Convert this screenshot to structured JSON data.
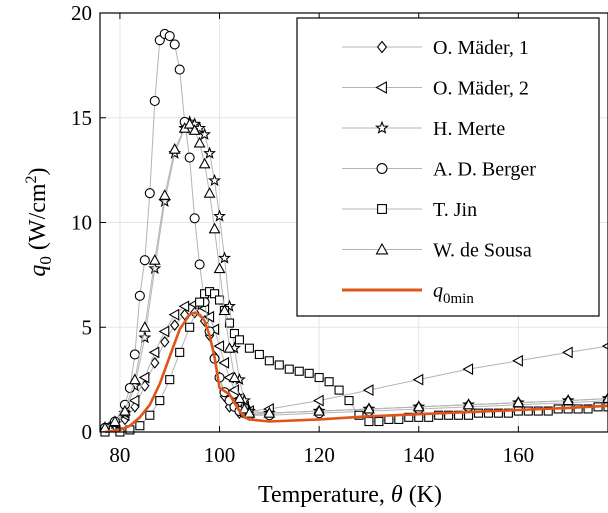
{
  "chart_data": {
    "type": "line",
    "title": "",
    "xlabel": "Temperature, θ (K)",
    "ylabel": "q₀ (W/cm²)",
    "xlim": [
      76,
      178
    ],
    "ylim": [
      0,
      20
    ],
    "xticks": [
      80,
      100,
      120,
      140,
      160
    ],
    "yticks": [
      0,
      5,
      10,
      15,
      20
    ],
    "grid": true,
    "legend_position": "top-right",
    "series": [
      {
        "name": "O. Mäder, 1",
        "marker": "diamond",
        "x": [
          77,
          79,
          81,
          83,
          85,
          87,
          89,
          91,
          93,
          95,
          97,
          98,
          99,
          100,
          101,
          102,
          104,
          106,
          110,
          120,
          130,
          140,
          150,
          160,
          170,
          178
        ],
        "y": [
          0.2,
          0.3,
          0.6,
          1.2,
          2.2,
          3.3,
          4.3,
          5.1,
          5.6,
          5.7,
          5.3,
          4.6,
          3.6,
          2.6,
          1.7,
          1.2,
          0.9,
          0.8,
          0.9,
          1.0,
          1.1,
          1.2,
          1.3,
          1.4,
          1.5,
          1.6
        ]
      },
      {
        "name": "O. Mäder, 2",
        "marker": "triangle-left",
        "x": [
          77,
          79,
          81,
          83,
          85,
          87,
          89,
          91,
          93,
          95,
          97,
          98,
          99,
          100,
          101,
          102,
          103,
          104,
          105,
          106,
          110,
          120,
          130,
          140,
          150,
          160,
          170,
          178
        ],
        "y": [
          0.2,
          0.4,
          0.8,
          1.5,
          2.6,
          3.8,
          4.8,
          5.6,
          6.0,
          6.1,
          5.9,
          5.5,
          4.9,
          4.1,
          3.3,
          2.6,
          2.0,
          1.6,
          1.2,
          1.0,
          1.1,
          1.5,
          2.0,
          2.5,
          3.0,
          3.4,
          3.8,
          4.1
        ]
      },
      {
        "name": "H. Merte",
        "marker": "star",
        "x": [
          77,
          79,
          81,
          83,
          85,
          87,
          89,
          91,
          93,
          94,
          95,
          96,
          97,
          98,
          99,
          100,
          101,
          102,
          103,
          104,
          105,
          106,
          110,
          120,
          130,
          140,
          150,
          160,
          170,
          178
        ],
        "y": [
          0.2,
          0.4,
          0.9,
          2.2,
          4.5,
          7.8,
          11.0,
          13.3,
          14.5,
          14.8,
          14.7,
          14.5,
          14.2,
          13.3,
          12.0,
          10.3,
          8.3,
          6.0,
          4.0,
          2.5,
          1.5,
          1.0,
          0.9,
          1.0,
          1.1,
          1.2,
          1.3,
          1.4,
          1.5,
          1.6
        ]
      },
      {
        "name": "A. D. Berger",
        "marker": "circle",
        "x": [
          77,
          79,
          81,
          82,
          83,
          84,
          85,
          86,
          87,
          88,
          89,
          90,
          91,
          92,
          93,
          94,
          95,
          96,
          97,
          98,
          99,
          100,
          101,
          102,
          103,
          104,
          105,
          106,
          110,
          120,
          130,
          140,
          150,
          160,
          170,
          178
        ],
        "y": [
          0.2,
          0.5,
          1.3,
          2.1,
          3.7,
          6.5,
          8.2,
          11.4,
          15.8,
          18.7,
          19.0,
          18.9,
          18.5,
          17.3,
          14.8,
          13.1,
          10.2,
          8.0,
          6.2,
          4.8,
          3.5,
          2.6,
          1.9,
          1.5,
          1.2,
          1.0,
          0.9,
          0.8,
          0.8,
          0.9,
          1.0,
          1.1,
          1.2,
          1.3,
          1.4,
          1.5
        ]
      },
      {
        "name": "T. Jin",
        "marker": "square",
        "x": [
          77,
          80,
          82,
          84,
          86,
          88,
          90,
          92,
          94,
          96,
          97,
          98,
          99,
          100,
          101,
          102,
          103,
          104,
          106,
          108,
          110,
          112,
          114,
          116,
          118,
          120,
          122,
          124,
          126,
          128,
          130,
          132,
          134,
          136,
          138,
          140,
          142,
          144,
          146,
          148,
          150,
          152,
          154,
          156,
          158,
          160,
          162,
          164,
          166,
          168,
          170,
          172,
          174,
          176,
          178
        ],
        "y": [
          0.0,
          0.0,
          0.1,
          0.3,
          0.8,
          1.5,
          2.5,
          3.8,
          5.0,
          6.2,
          6.6,
          6.7,
          6.6,
          6.3,
          5.8,
          5.2,
          4.7,
          4.4,
          4.0,
          3.7,
          3.4,
          3.2,
          3.0,
          2.9,
          2.8,
          2.6,
          2.4,
          2.0,
          1.5,
          0.8,
          0.5,
          0.5,
          0.6,
          0.6,
          0.7,
          0.7,
          0.7,
          0.8,
          0.8,
          0.8,
          0.8,
          0.9,
          0.9,
          0.9,
          0.9,
          1.0,
          1.0,
          1.0,
          1.0,
          1.1,
          1.1,
          1.1,
          1.1,
          1.2,
          1.2
        ]
      },
      {
        "name": "W. de Sousa",
        "marker": "triangle-up",
        "x": [
          77,
          79,
          81,
          83,
          85,
          87,
          89,
          91,
          93,
          94,
          95,
          96,
          97,
          98,
          99,
          100,
          101,
          102,
          103,
          104,
          105,
          106,
          110,
          120,
          130,
          140,
          150,
          160,
          170,
          178
        ],
        "y": [
          0.2,
          0.5,
          1.0,
          2.5,
          5.0,
          8.2,
          11.3,
          13.5,
          14.5,
          14.7,
          14.4,
          13.8,
          12.8,
          11.4,
          9.7,
          7.8,
          5.8,
          4.0,
          2.6,
          1.6,
          1.1,
          0.9,
          0.9,
          1.0,
          1.1,
          1.2,
          1.3,
          1.4,
          1.5,
          1.6
        ]
      },
      {
        "name": "q0min",
        "label_html": "q<tspan font-size=\"15px\" dy=\"6\">0min</tspan>",
        "marker": "none",
        "color": "#e0541a",
        "x": [
          77,
          80,
          82,
          84,
          86,
          88,
          90,
          92,
          94,
          95,
          96,
          97,
          98,
          99,
          100,
          102,
          104,
          105,
          106,
          110,
          120,
          130,
          140,
          150,
          160,
          170,
          178
        ],
        "y": [
          0.0,
          0.1,
          0.3,
          0.7,
          1.3,
          2.3,
          3.6,
          4.9,
          5.6,
          5.7,
          5.6,
          5.3,
          4.6,
          3.6,
          2.1,
          1.8,
          1.0,
          0.7,
          0.6,
          0.5,
          0.6,
          0.75,
          0.85,
          0.95,
          1.05,
          1.15,
          1.25
        ]
      }
    ]
  },
  "axes": {
    "ylabel_var": "q",
    "ylabel_sub": "0",
    "ylabel_unit_pre": " (W/cm",
    "ylabel_sup": "2",
    "ylabel_unit_post": ")",
    "xlabel_pre": "Temperature, ",
    "xlabel_var": "θ",
    "xlabel_unit": " (K)"
  },
  "colors": {
    "series_line": "#b4b4b4",
    "marker_stroke": "#000000",
    "grid": "#e6e6e6",
    "q0min": "#e0541a"
  }
}
